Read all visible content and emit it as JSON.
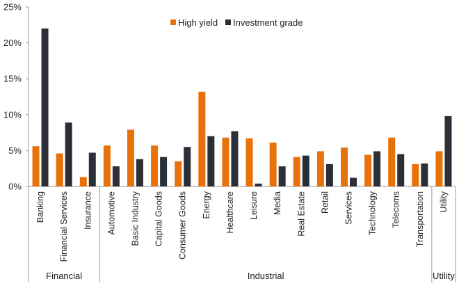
{
  "chart_data": {
    "type": "bar",
    "title": "",
    "xlabel": "",
    "ylabel": "",
    "ylim": [
      0,
      25
    ],
    "y_ticks": [
      "0%",
      "5%",
      "10%",
      "15%",
      "20%",
      "25%"
    ],
    "y_tick_values": [
      0,
      5,
      10,
      15,
      20,
      25
    ],
    "grid": false,
    "legend_position": "top",
    "categories": [
      "Banking",
      "Financial Services",
      "Insurance",
      "Automotive",
      "Basic Industry",
      "Capital Goods",
      "Consumer Goods",
      "Energy",
      "Healthcare",
      "Leisure",
      "Media",
      "Real Estate",
      "Retail",
      "Services",
      "Technology",
      "Telecoms",
      "Transportation",
      "Utility"
    ],
    "groups": [
      {
        "label": "Financial",
        "count": 3
      },
      {
        "label": "Industrial",
        "count": 14
      },
      {
        "label": "Utility",
        "count": 1
      }
    ],
    "series": [
      {
        "name": "High yield",
        "color": "#E8710A",
        "values": [
          5.6,
          4.6,
          1.3,
          5.7,
          7.9,
          5.7,
          3.5,
          13.2,
          6.8,
          6.7,
          6.1,
          4.1,
          4.9,
          5.4,
          4.4,
          6.8,
          3.1,
          4.9
        ]
      },
      {
        "name": "Investment grade",
        "color": "#2B2F38",
        "values": [
          22.0,
          8.9,
          4.7,
          2.8,
          3.8,
          4.1,
          5.5,
          7.0,
          7.7,
          0.4,
          2.8,
          4.3,
          3.1,
          1.2,
          4.9,
          4.5,
          3.2,
          9.8
        ]
      }
    ]
  }
}
